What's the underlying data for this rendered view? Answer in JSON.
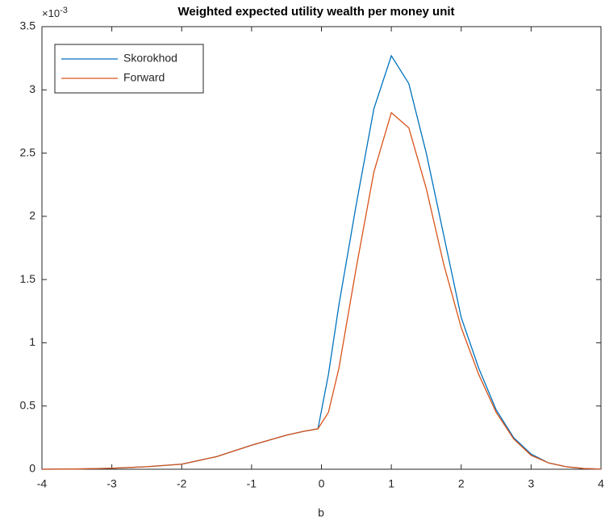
{
  "chart_data": {
    "type": "line",
    "title": "Weighted expected utility wealth per money unit",
    "x_label": "b",
    "y_exponent": {
      "base": "×10",
      "power": "-3"
    },
    "x": [
      -4,
      -3.5,
      -3,
      -2.5,
      -2,
      -1.5,
      -1,
      -0.5,
      -0.25,
      -0.05,
      0.1,
      0.25,
      0.5,
      0.75,
      1,
      1.25,
      1.5,
      1.75,
      2,
      2.25,
      2.5,
      2.75,
      3,
      3.25,
      3.5,
      3.75,
      4
    ],
    "series": [
      {
        "name": "Skorokhod",
        "color": "#0072bd",
        "values": [
          0,
          0.002,
          0.008,
          0.02,
          0.04,
          0.1,
          0.19,
          0.27,
          0.3,
          0.32,
          0.75,
          1.3,
          2.1,
          2.85,
          3.27,
          3.05,
          2.5,
          1.85,
          1.2,
          0.8,
          0.47,
          0.25,
          0.12,
          0.05,
          0.02,
          0.006,
          0.001
        ]
      },
      {
        "name": "Forward",
        "color": "#d95319",
        "values": [
          0,
          0.002,
          0.008,
          0.02,
          0.04,
          0.1,
          0.19,
          0.27,
          0.3,
          0.32,
          0.45,
          0.8,
          1.6,
          2.35,
          2.82,
          2.7,
          2.22,
          1.62,
          1.12,
          0.75,
          0.45,
          0.24,
          0.11,
          0.05,
          0.02,
          0.006,
          0.001
        ]
      }
    ],
    "xlim": [
      -4,
      4
    ],
    "xticks": [
      -4,
      -3,
      -2,
      -1,
      0,
      1,
      2,
      3,
      4
    ],
    "ylim": [
      0,
      3.5
    ],
    "yticks": [
      0,
      0.5,
      1,
      1.5,
      2,
      2.5,
      3,
      3.5
    ],
    "grid": false,
    "legend": "upper left"
  }
}
